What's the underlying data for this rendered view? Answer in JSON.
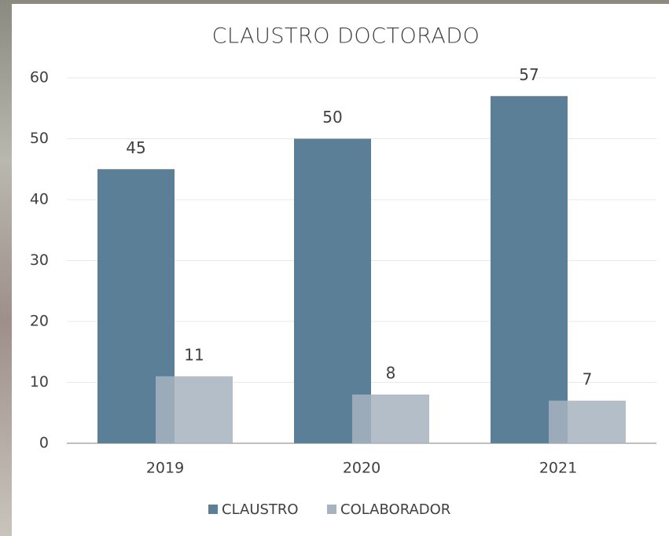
{
  "chart_data": {
    "type": "bar",
    "title": "CLAUSTRO DOCTORADO",
    "categories": [
      "2019",
      "2020",
      "2021"
    ],
    "series": [
      {
        "name": "CLAUSTRO",
        "color": "#5b7f96",
        "values": [
          45,
          50,
          57
        ]
      },
      {
        "name": "COLABORADOR",
        "color": "#a7b3bf",
        "values": [
          11,
          8,
          7
        ]
      }
    ],
    "ylim": [
      0,
      60
    ],
    "yticks": [
      0,
      10,
      20,
      30,
      40,
      50,
      60
    ],
    "grid": true,
    "legend": "bottom"
  }
}
